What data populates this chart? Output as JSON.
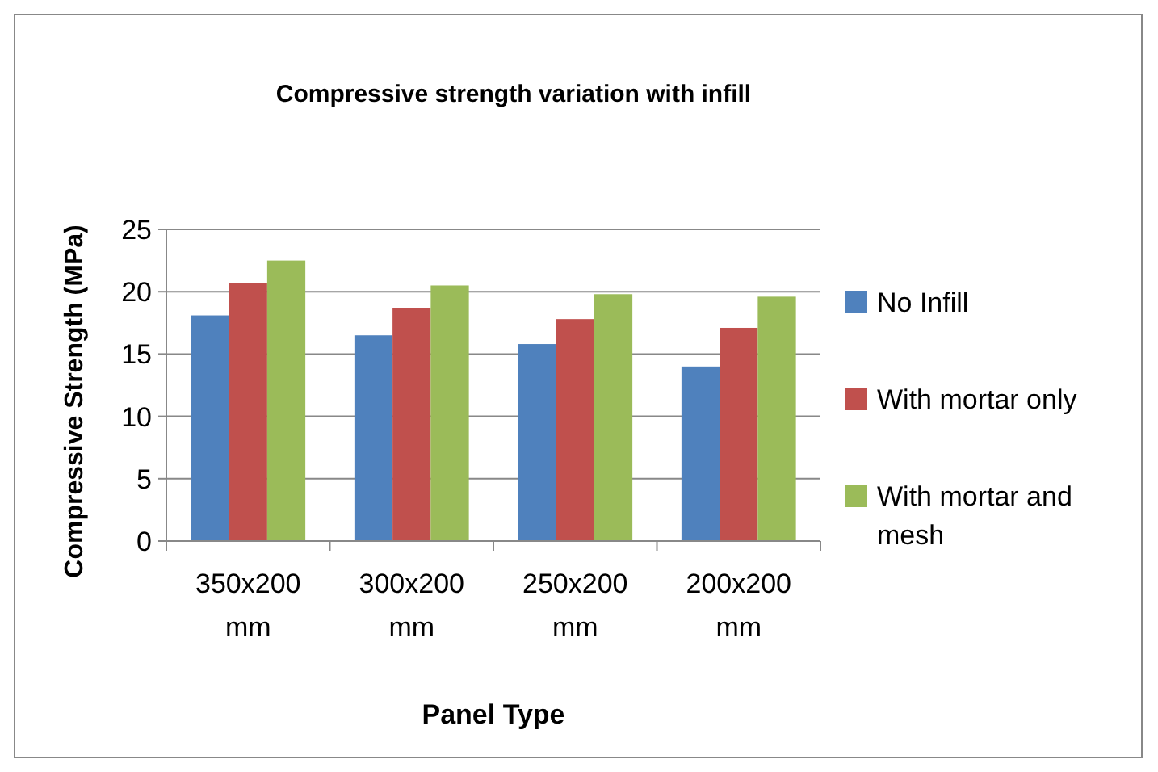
{
  "chart_data": {
    "type": "bar",
    "title": "Compressive strength variation with infill",
    "xlabel": "Panel Type",
    "ylabel": "Compressive Strength (MPa)",
    "categories": [
      "350x200 mm",
      "300x200 mm",
      "250x200 mm",
      "200x200 mm"
    ],
    "series": [
      {
        "name": "No Infill",
        "color": "#4f81bd",
        "values": [
          18.1,
          16.5,
          15.8,
          14.0
        ]
      },
      {
        "name": "With mortar only",
        "color": "#c0504d",
        "values": [
          20.7,
          18.7,
          17.8,
          17.1
        ]
      },
      {
        "name": "With mortar and mesh",
        "color": "#9bbb59",
        "values": [
          22.5,
          20.5,
          19.8,
          19.6
        ]
      }
    ],
    "ylim": [
      0,
      25
    ],
    "yticks": [
      0,
      5,
      10,
      15,
      20,
      25
    ],
    "grid": "y",
    "legend": "right"
  }
}
